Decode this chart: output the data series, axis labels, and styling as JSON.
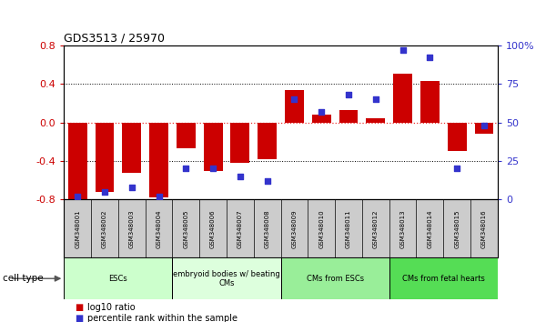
{
  "title": "GDS3513 / 25970",
  "samples": [
    "GSM348001",
    "GSM348002",
    "GSM348003",
    "GSM348004",
    "GSM348005",
    "GSM348006",
    "GSM348007",
    "GSM348008",
    "GSM348009",
    "GSM348010",
    "GSM348011",
    "GSM348012",
    "GSM348013",
    "GSM348014",
    "GSM348015",
    "GSM348016"
  ],
  "log10_ratio": [
    -0.8,
    -0.72,
    -0.52,
    -0.78,
    -0.27,
    -0.5,
    -0.42,
    -0.38,
    0.33,
    0.08,
    0.13,
    0.04,
    0.5,
    0.43,
    -0.3,
    -0.12
  ],
  "percentile_rank": [
    2,
    5,
    8,
    2,
    20,
    20,
    15,
    12,
    65,
    57,
    68,
    65,
    97,
    92,
    20,
    48
  ],
  "bar_color": "#cc0000",
  "dot_color": "#3333cc",
  "ylim_left": [
    -0.8,
    0.8
  ],
  "ylim_right": [
    0,
    100
  ],
  "yticks_left": [
    -0.8,
    -0.4,
    0.0,
    0.4,
    0.8
  ],
  "yticks_right": [
    0,
    25,
    50,
    75,
    100
  ],
  "cell_types": [
    {
      "label": "ESCs",
      "start": 0,
      "end": 4,
      "color": "#ccffcc"
    },
    {
      "label": "embryoid bodies w/ beating\nCMs",
      "start": 4,
      "end": 8,
      "color": "#ddffdd"
    },
    {
      "label": "CMs from ESCs",
      "start": 8,
      "end": 12,
      "color": "#99ee99"
    },
    {
      "label": "CMs from fetal hearts",
      "start": 12,
      "end": 16,
      "color": "#55dd55"
    }
  ],
  "cell_type_label": "cell type",
  "legend_bar_label": "log10 ratio",
  "legend_dot_label": "percentile rank within the sample",
  "hline_color": "#ee3333",
  "grid_color": "#333333",
  "bg_color": "#ffffff",
  "sample_bg": "#cccccc"
}
